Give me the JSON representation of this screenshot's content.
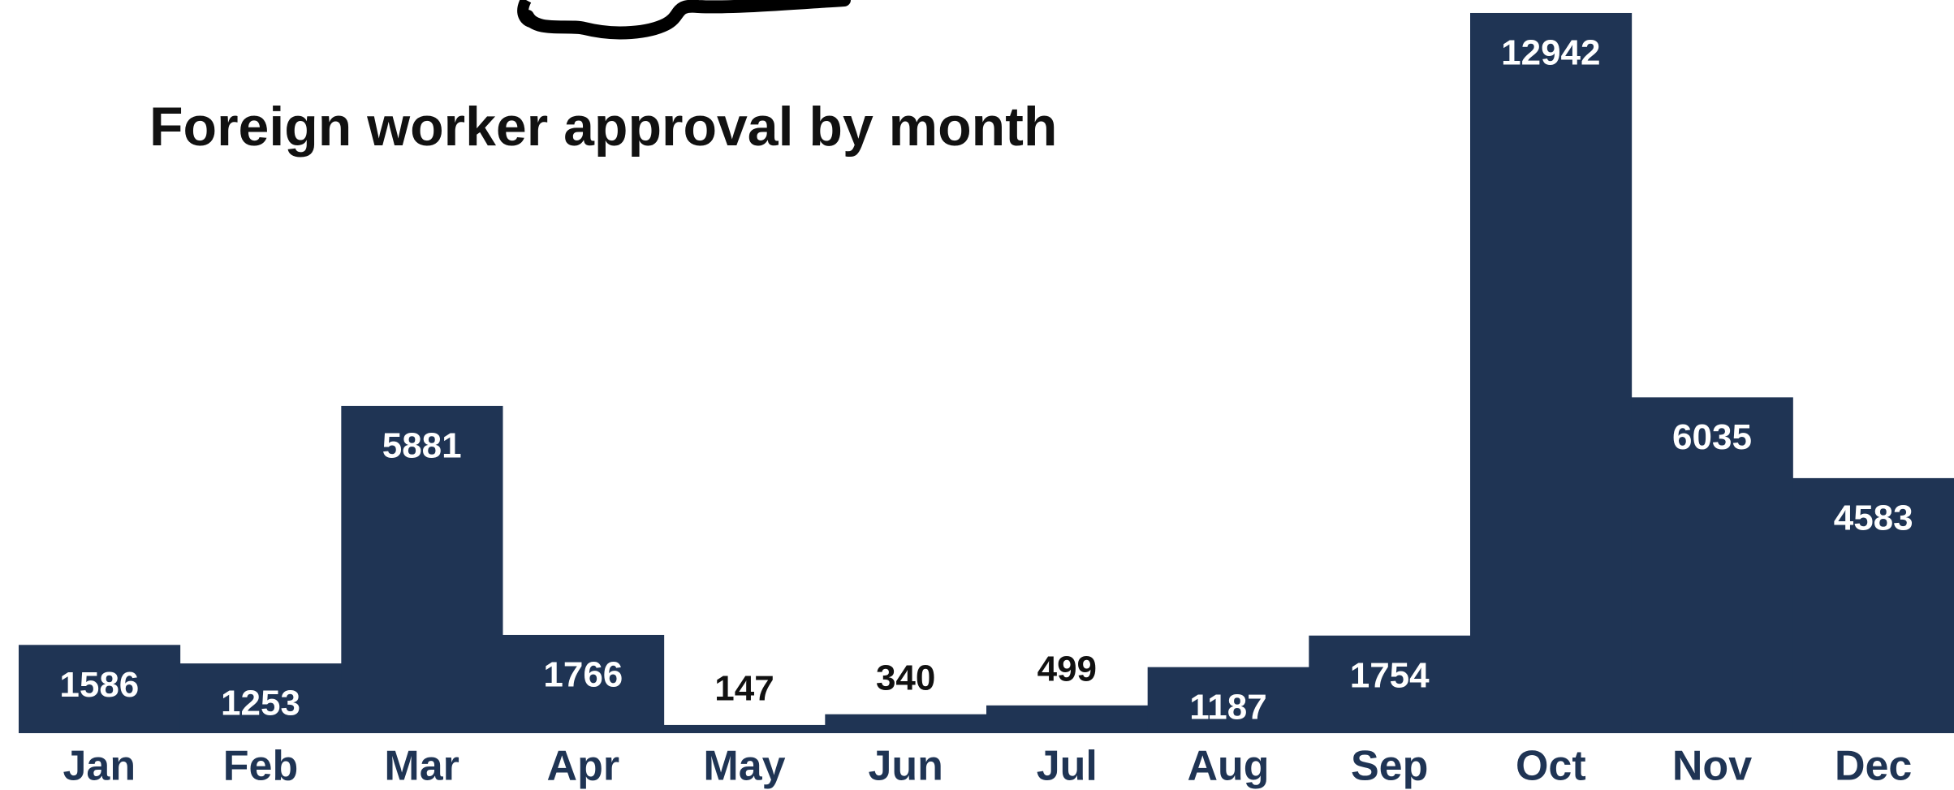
{
  "chart_data": {
    "type": "bar",
    "title": "Foreign worker approval by month",
    "categories": [
      "Jan",
      "Feb",
      "Mar",
      "Apr",
      "May",
      "Jun",
      "Jul",
      "Aug",
      "Sep",
      "Oct",
      "Nov",
      "Dec"
    ],
    "values": [
      1586,
      1253,
      5881,
      1766,
      147,
      340,
      499,
      1187,
      1754,
      12942,
      6035,
      4583
    ],
    "color": "#1f3454",
    "ylim": [
      0,
      13000
    ]
  }
}
